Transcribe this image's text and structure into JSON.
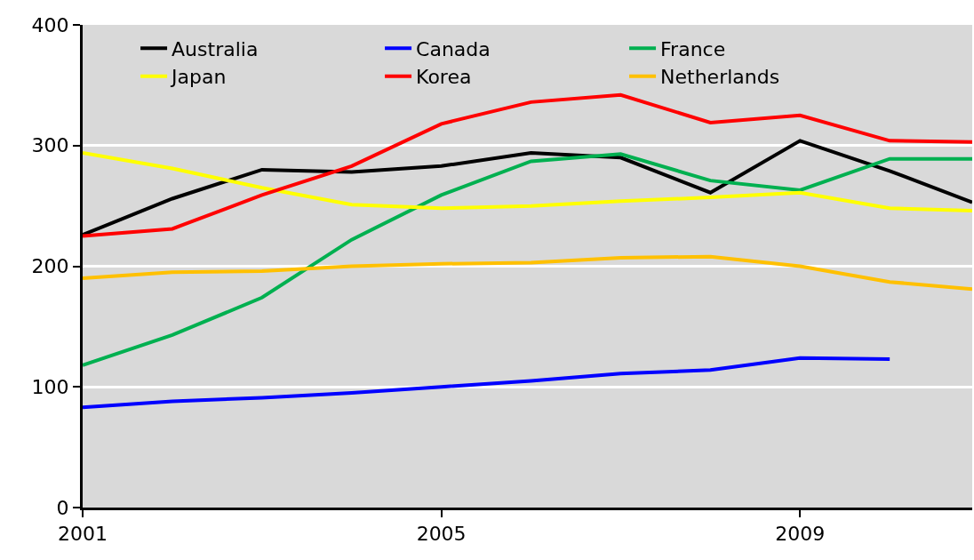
{
  "chart_data": {
    "type": "line",
    "x": [
      2001,
      2002,
      2003,
      2004,
      2005,
      2006,
      2007,
      2008,
      2009,
      2010,
      2010.92
    ],
    "xlim": [
      2001,
      2010.92
    ],
    "xticks": [
      2001,
      2005,
      2009
    ],
    "ylim": [
      0,
      400
    ],
    "yticks": [
      0,
      100,
      200,
      300,
      400
    ],
    "grid": "y",
    "legend": "top",
    "marker": "none",
    "line_style": "solid",
    "series": [
      {
        "name": "Australia",
        "color": "#000000",
        "values": [
          226,
          256,
          280,
          278,
          283,
          294,
          290,
          261,
          304,
          279,
          253
        ]
      },
      {
        "name": "Canada",
        "color": "#0000ff",
        "values": [
          83,
          88,
          91,
          95,
          100,
          105,
          111,
          114,
          124,
          123,
          null
        ]
      },
      {
        "name": "France",
        "color": "#00b050",
        "values": [
          118,
          143,
          174,
          222,
          259,
          287,
          293,
          271,
          263,
          289,
          289
        ]
      },
      {
        "name": "Japan",
        "color": "#ffff00",
        "values": [
          294,
          281,
          265,
          251,
          248,
          250,
          254,
          257,
          261,
          248,
          246
        ]
      },
      {
        "name": "Korea",
        "color": "#ff0000",
        "values": [
          225,
          231,
          259,
          283,
          318,
          336,
          342,
          319,
          325,
          304,
          303
        ]
      },
      {
        "name": "Netherlands",
        "color": "#ffc000",
        "values": [
          190,
          195,
          196,
          200,
          202,
          203,
          207,
          208,
          200,
          187,
          181
        ]
      }
    ]
  }
}
